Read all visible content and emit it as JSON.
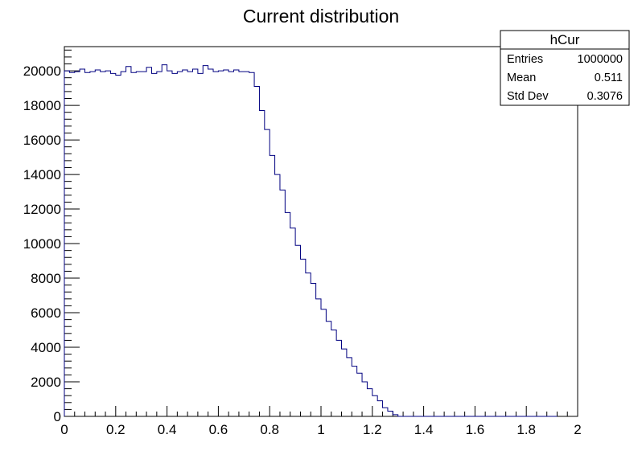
{
  "chart_data": {
    "type": "bar",
    "title": "Current distribution",
    "xlabel": "",
    "ylabel": "",
    "xlim": [
      0,
      2
    ],
    "ylim": [
      0,
      21400
    ],
    "x_ticks": [
      "0",
      "0.2",
      "0.4",
      "0.6",
      "0.8",
      "1",
      "1.2",
      "1.4",
      "1.6",
      "1.8",
      "2"
    ],
    "y_ticks": [
      "0",
      "2000",
      "4000",
      "6000",
      "8000",
      "10000",
      "12000",
      "14000",
      "16000",
      "18000",
      "20000"
    ],
    "bin_width": 0.02,
    "series": [
      {
        "line_color": "#000080",
        "bin_start": 0,
        "values": [
          20000,
          19900,
          19950,
          20100,
          19900,
          19950,
          20050,
          19950,
          20000,
          19850,
          19750,
          19950,
          20250,
          19900,
          19950,
          19950,
          20200,
          19850,
          19950,
          20350,
          20000,
          19850,
          19950,
          20050,
          19950,
          20100,
          19850,
          20300,
          20100,
          19950,
          20000,
          20050,
          19950,
          20050,
          19950,
          19950,
          19900,
          19100,
          17700,
          16600,
          15100,
          14000,
          13100,
          11800,
          10900,
          9900,
          9100,
          8300,
          7700,
          6800,
          6200,
          5500,
          5000,
          4400,
          3900,
          3400,
          2900,
          2500,
          2000,
          1600,
          1200,
          900,
          500,
          300,
          100,
          0,
          0,
          0,
          0,
          0,
          0,
          0,
          0,
          0,
          0,
          0,
          0,
          0,
          0,
          0,
          0,
          0,
          0,
          0,
          0,
          0,
          0,
          0,
          0,
          0,
          0,
          0,
          0,
          0,
          0,
          0
        ]
      }
    ]
  },
  "stats": {
    "name": "hCur",
    "rows": [
      {
        "label": "Entries",
        "value": "1000000"
      },
      {
        "label": "Mean",
        "value": "0.511"
      },
      {
        "label": "Std Dev",
        "value": "0.3076"
      }
    ]
  }
}
